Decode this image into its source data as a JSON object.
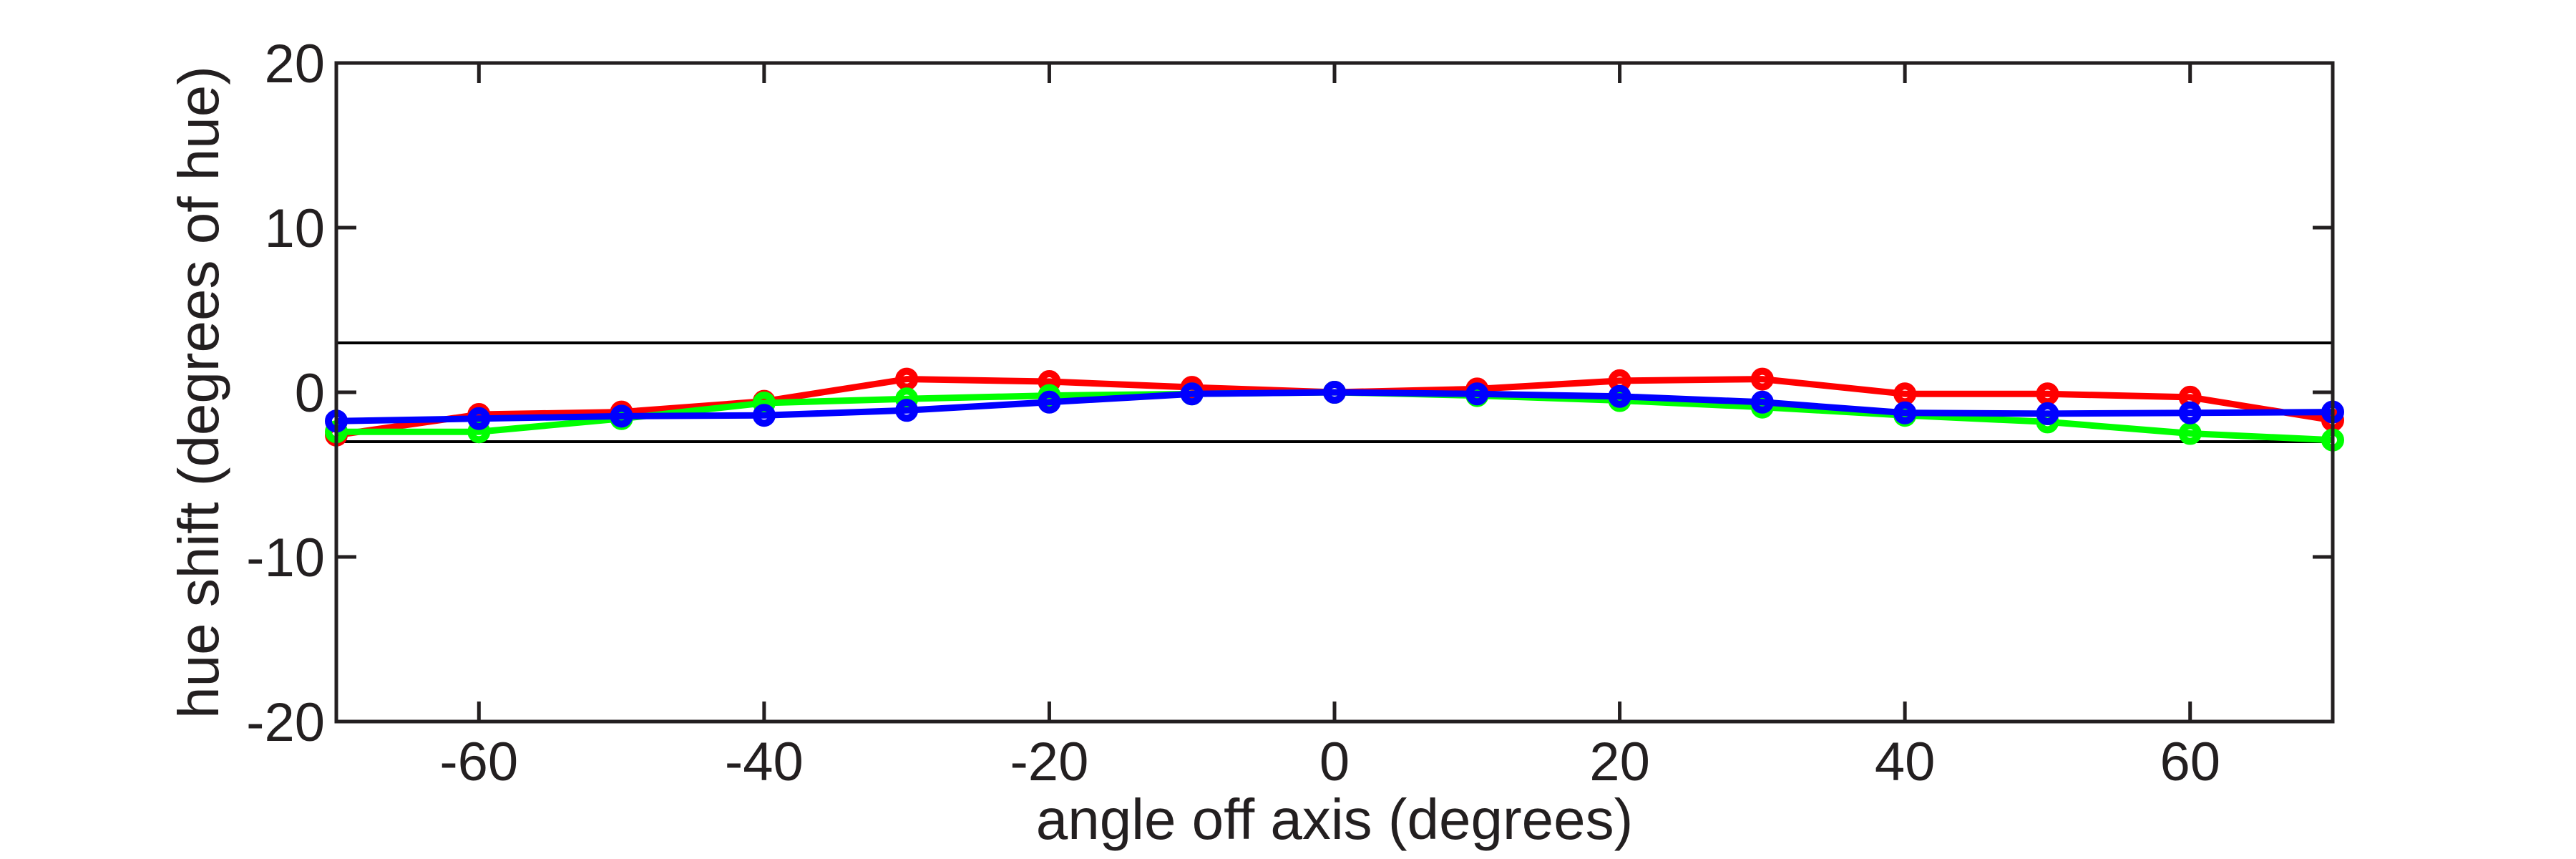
{
  "figure": {
    "background": "#ffffff",
    "axis_color": "#231f20",
    "plot_background": "#ffffff"
  },
  "chart_data": {
    "type": "line",
    "title": "",
    "xlabel": "angle off axis (degrees)",
    "ylabel": "hue shift (degrees of hue)",
    "xlim": [
      -70,
      70
    ],
    "ylim": [
      -20,
      20
    ],
    "xticks": [
      -60,
      -40,
      -20,
      0,
      20,
      40,
      60
    ],
    "yticks": [
      -20,
      -10,
      0,
      10,
      20
    ],
    "grid": false,
    "box": true,
    "legend_position": "none",
    "x": [
      -70,
      -60,
      -50,
      -40,
      -30,
      -20,
      -10,
      0,
      10,
      20,
      30,
      40,
      50,
      60,
      70
    ],
    "series": [
      {
        "name": "red",
        "color": "#ff0000",
        "marker": "open-circle",
        "values": [
          -2.6,
          -1.35,
          -1.2,
          -0.55,
          0.8,
          0.65,
          0.3,
          0.0,
          0.2,
          0.7,
          0.8,
          -0.1,
          -0.1,
          -0.3,
          -1.7
        ]
      },
      {
        "name": "green",
        "color": "#00ff00",
        "marker": "open-circle",
        "values": [
          -2.4,
          -2.4,
          -1.6,
          -0.65,
          -0.4,
          -0.2,
          -0.1,
          0.0,
          -0.2,
          -0.5,
          -0.9,
          -1.4,
          -1.8,
          -2.5,
          -2.9
        ]
      },
      {
        "name": "blue",
        "color": "#0000ff",
        "marker": "open-circle",
        "values": [
          -1.75,
          -1.6,
          -1.45,
          -1.4,
          -1.1,
          -0.6,
          -0.1,
          0.0,
          -0.1,
          -0.25,
          -0.6,
          -1.25,
          -1.3,
          -1.25,
          -1.2
        ]
      }
    ],
    "reference_lines": [
      {
        "y": 3,
        "color": "#000000"
      },
      {
        "y": -3,
        "color": "#000000"
      }
    ]
  }
}
